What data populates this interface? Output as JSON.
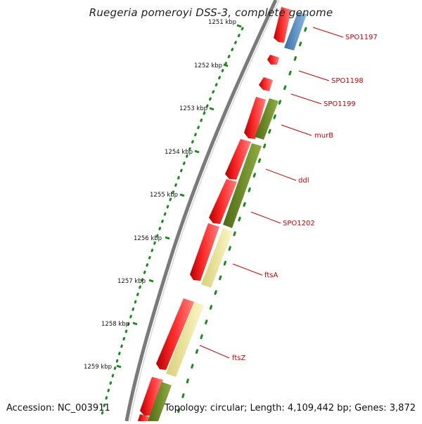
{
  "title": "Ruegeria pomeroyi DSS-3, complete genome",
  "footer": {
    "accession": "Accession: NC_003911",
    "summary": "Topology: circular; Length: 4,109,442 bp; Genes: 3,872"
  },
  "scale_labels": [
    "1251 kbp",
    "1252 kbp",
    "1253 kbp",
    "1254 kbp",
    "1255 kbp",
    "1256 kbp",
    "1257 kbp",
    "1258 kbp",
    "1259 kbp"
  ],
  "genes": [
    "SPO1197",
    "SPO1198",
    "SPO1199",
    "murB",
    "ddl",
    "SPO1202",
    "ftsA",
    "ftsZ"
  ],
  "colors": {
    "backbone": "#7a7a7a",
    "forward_red": "#ff1a1a",
    "cog_blue": "#4a86c0",
    "cog_olive": "#6b8c24",
    "cog_yellow": "#f2ec9c",
    "tick_green": "#1a8a1a",
    "label_red": "#cc0000",
    "scale_text": "#111111"
  }
}
